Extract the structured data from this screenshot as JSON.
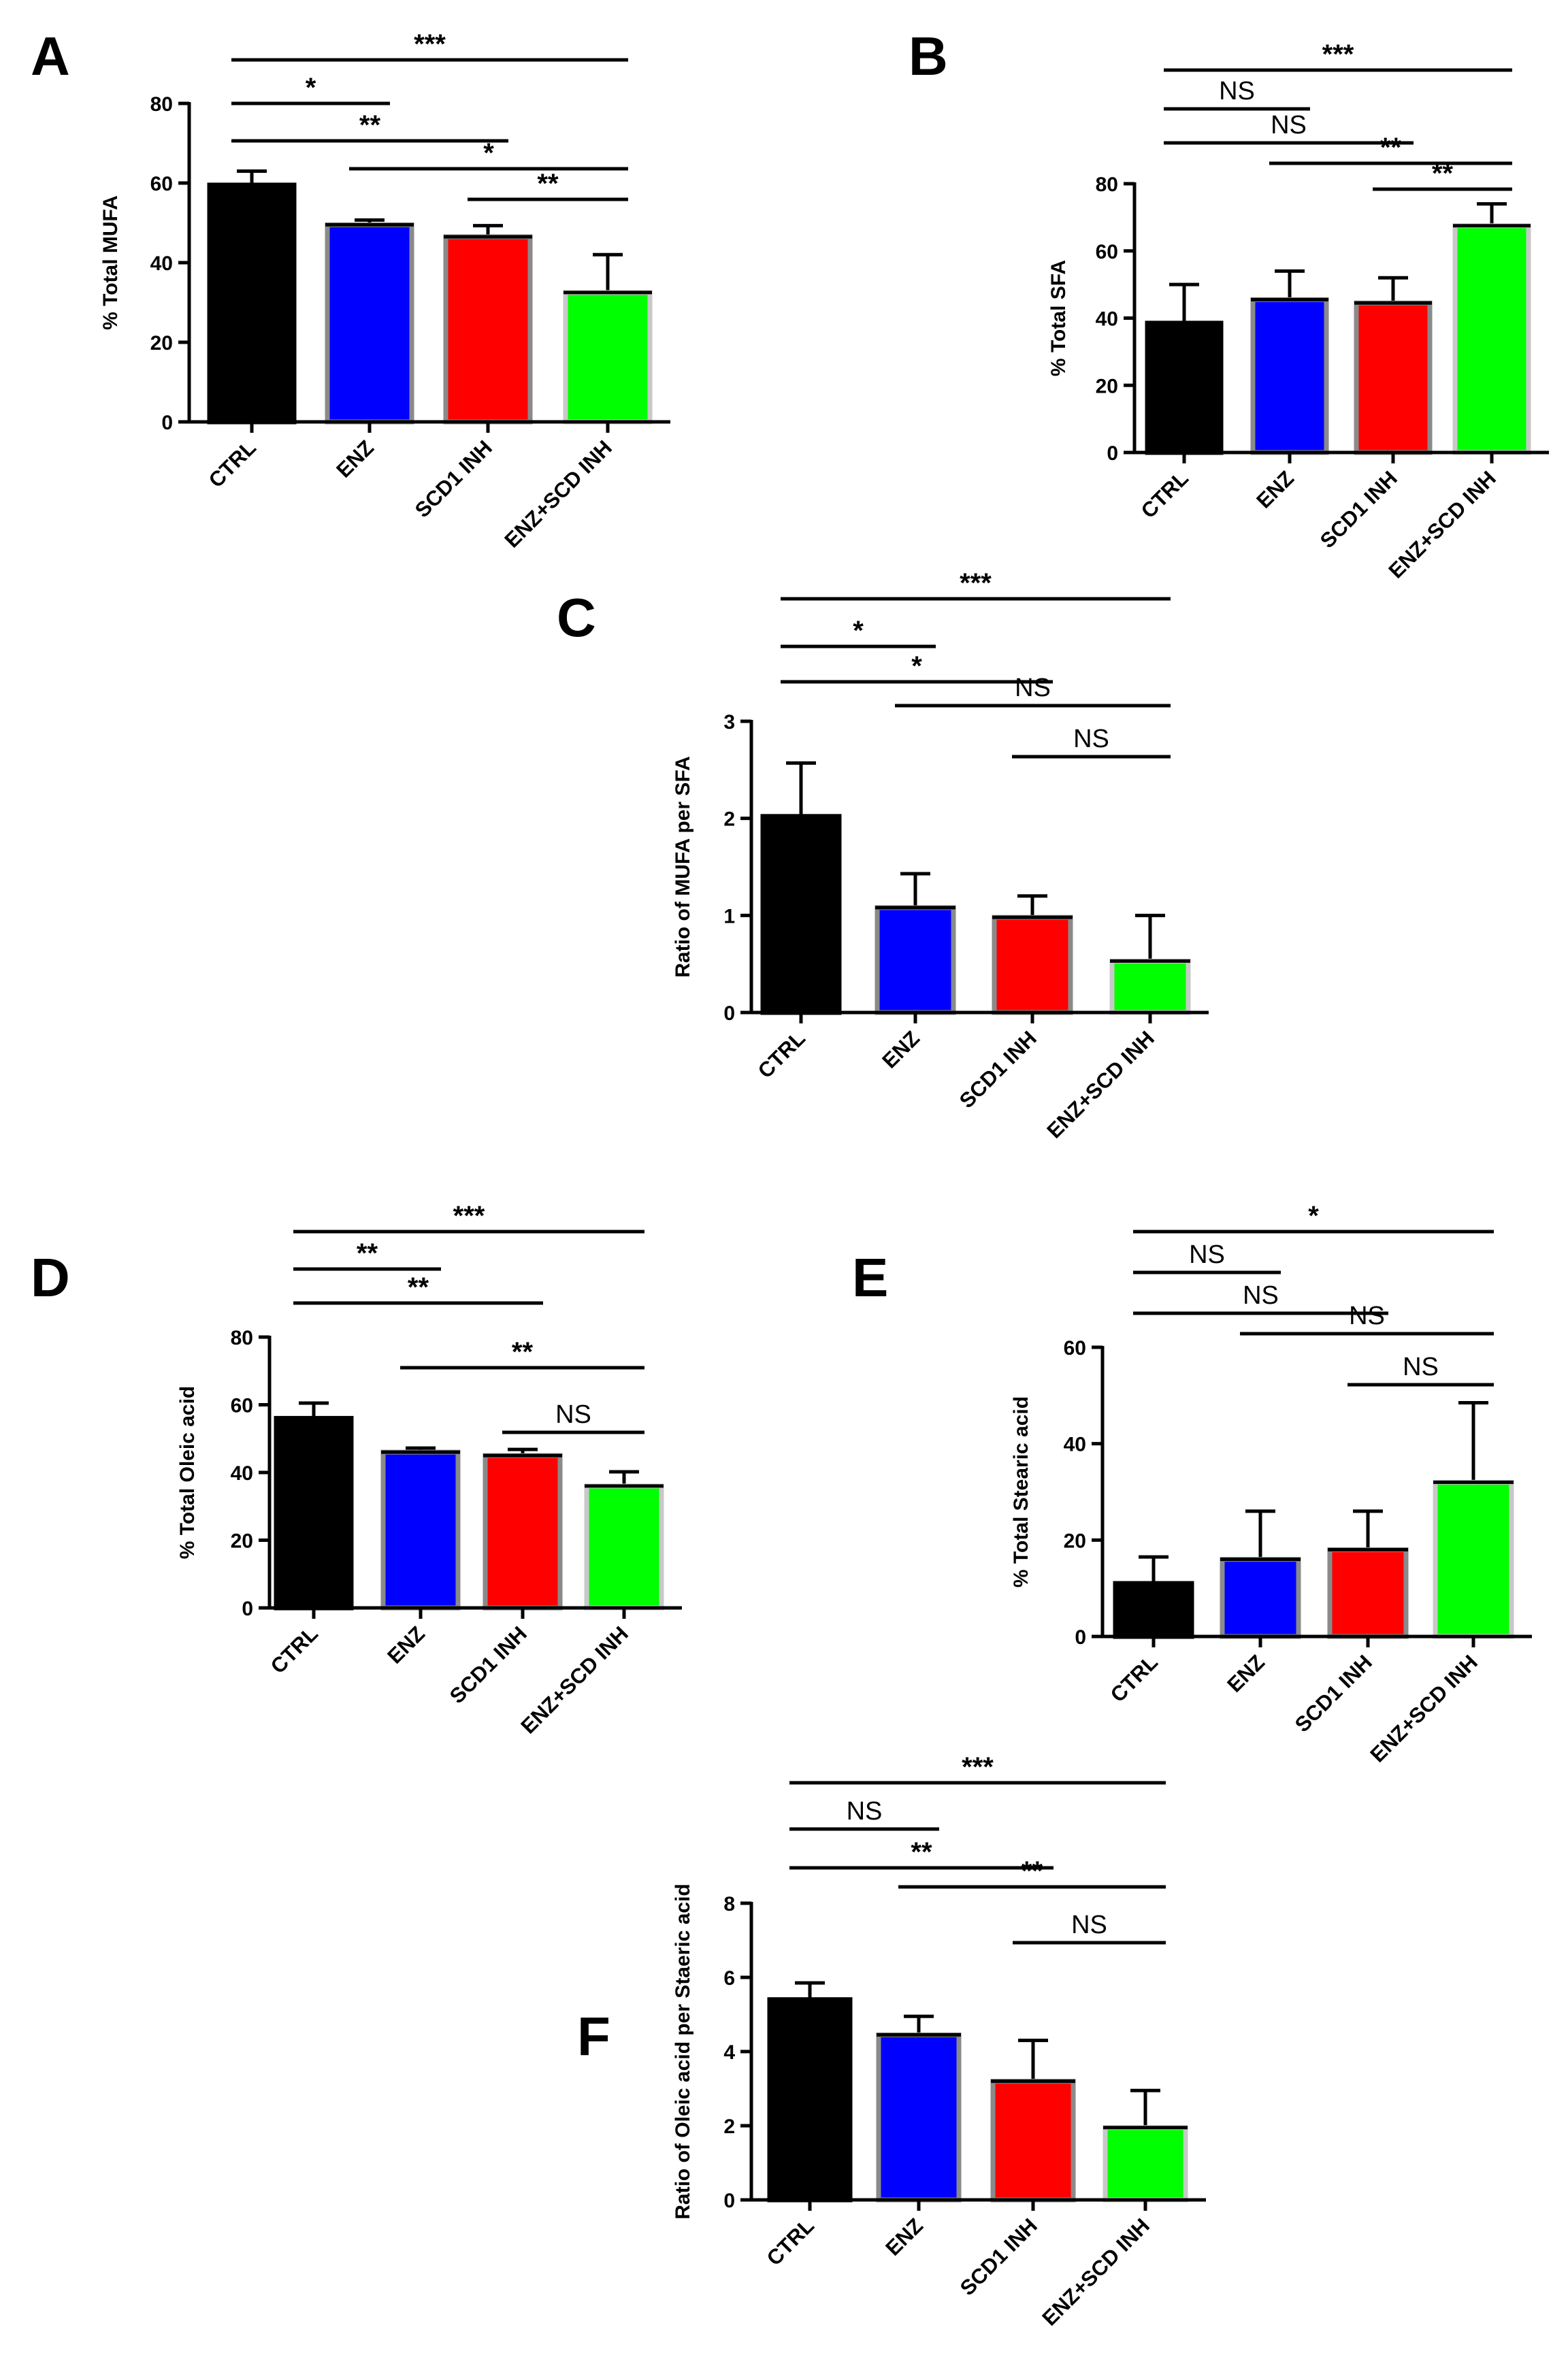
{
  "figure": {
    "bar_colors": {
      "CTRL": "#000000",
      "ENZ": "#0000ff",
      "SCD1 INH": "#ff0000",
      "ENZ+SCD INH": "#00ff00"
    },
    "bar_edge_colors": {
      "CTRL": "#000000",
      "ENZ": "#8a8a8a",
      "SCD1 INH": "#8a8a8a",
      "ENZ+SCD INH": "#c8c8c8"
    }
  },
  "chart_data": [
    {
      "id": "A",
      "panel_label": "A",
      "type": "bar",
      "categories": [
        "CTRL",
        "ENZ",
        "SCD1 INH",
        "ENZ+SCD INH"
      ],
      "values": [
        59.5,
        49.5,
        46.5,
        32.5
      ],
      "errors": [
        3.5,
        1.2,
        2.8,
        9.5
      ],
      "ylabel": "% Total MUFA",
      "ylim": [
        0,
        80
      ],
      "yticks": [
        "0",
        "20",
        "40",
        "60",
        "80"
      ],
      "ytick_values": [
        0,
        20,
        40,
        60,
        80
      ],
      "significance": [
        {
          "from": 0,
          "to": 3,
          "label": "***"
        },
        {
          "from": 0,
          "to": 1,
          "label": "*"
        },
        {
          "from": 0,
          "to": 2,
          "label": "**"
        },
        {
          "from": 1,
          "to": 3,
          "label": "*"
        },
        {
          "from": 2,
          "to": 3,
          "label": "**"
        }
      ]
    },
    {
      "id": "B",
      "panel_label": "B",
      "type": "bar",
      "categories": [
        "CTRL",
        "ENZ",
        "SCD1 INH",
        "ENZ+SCD INH"
      ],
      "values": [
        38.5,
        45.5,
        44.5,
        67.5
      ],
      "errors": [
        11.5,
        8.5,
        7.5,
        6.5
      ],
      "ylabel": "% Total SFA",
      "ylim": [
        0,
        80
      ],
      "yticks": [
        "0",
        "20",
        "40",
        "60",
        "80"
      ],
      "ytick_values": [
        0,
        20,
        40,
        60,
        80
      ],
      "significance": [
        {
          "from": 0,
          "to": 3,
          "label": "***"
        },
        {
          "from": 0,
          "to": 1,
          "label": "NS"
        },
        {
          "from": 0,
          "to": 2,
          "label": "NS"
        },
        {
          "from": 1,
          "to": 3,
          "label": "**"
        },
        {
          "from": 2,
          "to": 3,
          "label": "**"
        }
      ]
    },
    {
      "id": "C",
      "panel_label": "C",
      "type": "bar",
      "categories": [
        "CTRL",
        "ENZ",
        "SCD1 INH",
        "ENZ+SCD INH"
      ],
      "values": [
        2.02,
        1.08,
        0.98,
        0.53
      ],
      "errors": [
        0.55,
        0.35,
        0.22,
        0.47
      ],
      "ylabel": "Ratio of MUFA per SFA",
      "ylim": [
        0,
        3
      ],
      "yticks": [
        "0",
        "1",
        "2",
        "3"
      ],
      "ytick_values": [
        0,
        1,
        2,
        3
      ],
      "significance": [
        {
          "from": 0,
          "to": 3,
          "label": "***"
        },
        {
          "from": 0,
          "to": 1,
          "label": "*"
        },
        {
          "from": 0,
          "to": 2,
          "label": "*"
        },
        {
          "from": 1,
          "to": 3,
          "label": "NS"
        },
        {
          "from": 2,
          "to": 3,
          "label": "NS"
        }
      ]
    },
    {
      "id": "D",
      "panel_label": "D",
      "type": "bar",
      "categories": [
        "CTRL",
        "ENZ",
        "SCD1 INH",
        "ENZ+SCD INH"
      ],
      "values": [
        56,
        46,
        45,
        36
      ],
      "errors": [
        4.5,
        1.2,
        1.8,
        4.2
      ],
      "ylabel": "% Total Oleic acid",
      "ylim": [
        0,
        80
      ],
      "yticks": [
        "0",
        "20",
        "40",
        "60",
        "80"
      ],
      "ytick_values": [
        0,
        20,
        40,
        60,
        80
      ],
      "significance": [
        {
          "from": 0,
          "to": 3,
          "label": "***"
        },
        {
          "from": 0,
          "to": 1,
          "label": "**"
        },
        {
          "from": 0,
          "to": 2,
          "label": "**"
        },
        {
          "from": 1,
          "to": 3,
          "label": "**"
        },
        {
          "from": 2,
          "to": 3,
          "label": "NS"
        }
      ]
    },
    {
      "id": "E",
      "panel_label": "E",
      "type": "bar",
      "categories": [
        "CTRL",
        "ENZ",
        "SCD1 INH",
        "ENZ+SCD INH"
      ],
      "values": [
        11,
        16,
        18,
        32
      ],
      "errors": [
        5.5,
        10,
        8,
        16.5
      ],
      "ylabel": "% Total  Stearic acid",
      "ylim": [
        0,
        60
      ],
      "yticks": [
        "0",
        "20",
        "40",
        "60"
      ],
      "ytick_values": [
        0,
        20,
        40,
        60
      ],
      "significance": [
        {
          "from": 0,
          "to": 3,
          "label": "*"
        },
        {
          "from": 0,
          "to": 1,
          "label": "NS"
        },
        {
          "from": 0,
          "to": 2,
          "label": "NS"
        },
        {
          "from": 1,
          "to": 3,
          "label": "NS"
        },
        {
          "from": 2,
          "to": 3,
          "label": "NS"
        }
      ]
    },
    {
      "id": "F",
      "panel_label": "F",
      "type": "bar",
      "categories": [
        "CTRL",
        "ENZ",
        "SCD1 INH",
        "ENZ+SCD INH"
      ],
      "values": [
        5.4,
        4.45,
        3.2,
        1.95
      ],
      "errors": [
        0.45,
        0.5,
        1.1,
        1.0
      ],
      "ylabel": "Ratio of Oleic acid per Staeric acid",
      "ylim": [
        0,
        8
      ],
      "yticks": [
        "0",
        "2",
        "4",
        "6",
        "8"
      ],
      "ytick_values": [
        0,
        2,
        4,
        6,
        8
      ],
      "significance": [
        {
          "from": 0,
          "to": 3,
          "label": "***"
        },
        {
          "from": 0,
          "to": 1,
          "label": "NS"
        },
        {
          "from": 0,
          "to": 2,
          "label": "**"
        },
        {
          "from": 1,
          "to": 3,
          "label": "**"
        },
        {
          "from": 2,
          "to": 3,
          "label": "NS"
        }
      ]
    }
  ]
}
